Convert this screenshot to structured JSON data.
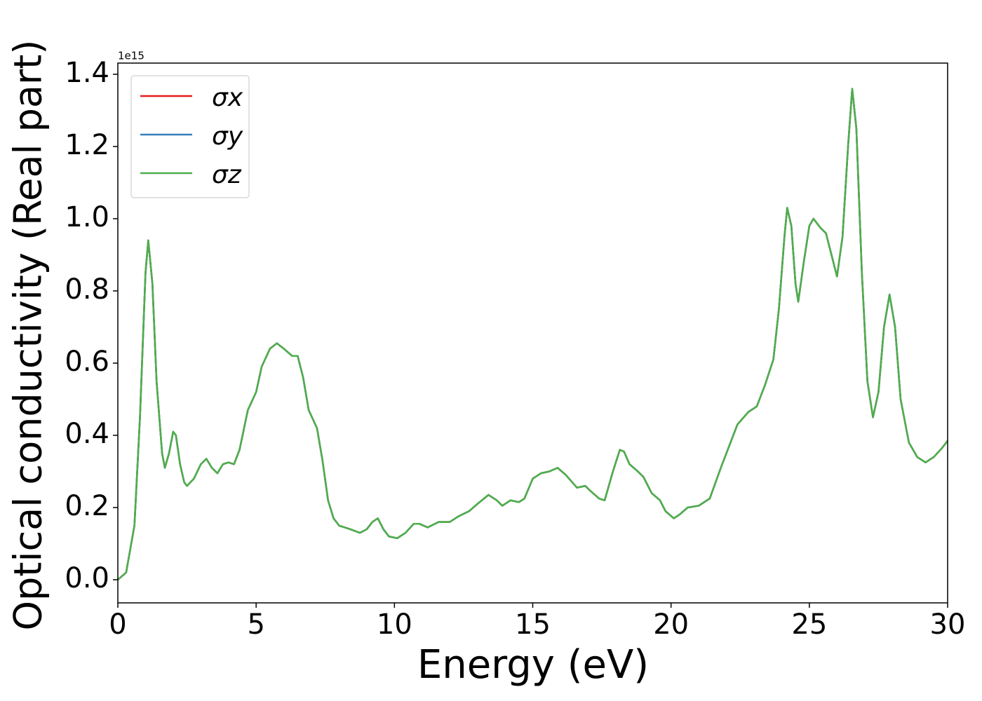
{
  "chart_data": {
    "type": "line",
    "xlabel": "Energy (eV)",
    "ylabel": "Optical conductivity (Real part)",
    "y_offset_label": "1e15",
    "xlim": [
      0,
      30
    ],
    "xticks": [
      0,
      5,
      10,
      15,
      20,
      25,
      30
    ],
    "ylim": [
      -0.064,
      1.431
    ],
    "yticks": [
      {
        "value": 0,
        "label": "0.0"
      },
      {
        "value": 0.2,
        "label": "0.2"
      },
      {
        "value": 0.4,
        "label": "0.4"
      },
      {
        "value": 0.6,
        "label": "0.6"
      },
      {
        "value": 0.8,
        "label": "0.8"
      },
      {
        "value": 1.0,
        "label": "1.0"
      },
      {
        "value": 1.2,
        "label": "1.2"
      },
      {
        "value": 1.4,
        "label": "1.4"
      }
    ],
    "legend": "upper left",
    "x": [
      0,
      0.3,
      0.6,
      0.8,
      1.0,
      1.1,
      1.25,
      1.4,
      1.6,
      1.7,
      1.85,
      2.0,
      2.1,
      2.25,
      2.4,
      2.5,
      2.75,
      3.0,
      3.2,
      3.4,
      3.6,
      3.8,
      4.0,
      4.2,
      4.4,
      4.7,
      5.0,
      5.2,
      5.5,
      5.75,
      6.0,
      6.3,
      6.5,
      6.7,
      6.9,
      7.2,
      7.4,
      7.6,
      7.8,
      8.0,
      8.4,
      8.75,
      9.0,
      9.2,
      9.4,
      9.6,
      9.8,
      10.1,
      10.4,
      10.7,
      10.9,
      11.2,
      11.6,
      12.0,
      12.3,
      12.7,
      13.0,
      13.4,
      13.7,
      13.9,
      14.2,
      14.5,
      14.7,
      15.0,
      15.3,
      15.6,
      15.9,
      16.2,
      16.6,
      16.9,
      17.1,
      17.4,
      17.6,
      17.9,
      18.15,
      18.3,
      18.5,
      18.8,
      19.0,
      19.3,
      19.6,
      19.8,
      20.1,
      20.3,
      20.6,
      21.0,
      21.4,
      21.8,
      22.1,
      22.4,
      22.8,
      23.1,
      23.4,
      23.7,
      23.9,
      24.1,
      24.2,
      24.35,
      24.5,
      24.6,
      24.8,
      25.0,
      25.15,
      25.4,
      25.6,
      25.9,
      26.0,
      26.2,
      26.4,
      26.55,
      26.7,
      26.9,
      27.1,
      27.3,
      27.5,
      27.7,
      27.9,
      28.1,
      28.3,
      28.6,
      28.9,
      29.2,
      29.5,
      29.8,
      30
    ],
    "series": [
      {
        "name": "σx",
        "color": "#e41a1c",
        "values": [
          0,
          0.02,
          0.15,
          0.45,
          0.85,
          0.94,
          0.82,
          0.55,
          0.35,
          0.31,
          0.35,
          0.41,
          0.4,
          0.32,
          0.27,
          0.26,
          0.28,
          0.32,
          0.335,
          0.31,
          0.295,
          0.32,
          0.325,
          0.32,
          0.36,
          0.47,
          0.52,
          0.59,
          0.64,
          0.655,
          0.64,
          0.62,
          0.62,
          0.56,
          0.47,
          0.42,
          0.33,
          0.22,
          0.17,
          0.15,
          0.14,
          0.13,
          0.14,
          0.16,
          0.17,
          0.14,
          0.12,
          0.115,
          0.13,
          0.155,
          0.155,
          0.145,
          0.16,
          0.16,
          0.175,
          0.19,
          0.21,
          0.235,
          0.22,
          0.205,
          0.22,
          0.215,
          0.225,
          0.28,
          0.295,
          0.3,
          0.31,
          0.29,
          0.255,
          0.26,
          0.245,
          0.225,
          0.22,
          0.3,
          0.36,
          0.355,
          0.32,
          0.3,
          0.285,
          0.24,
          0.22,
          0.19,
          0.17,
          0.18,
          0.2,
          0.205,
          0.225,
          0.31,
          0.37,
          0.43,
          0.465,
          0.48,
          0.54,
          0.61,
          0.75,
          0.95,
          1.03,
          0.98,
          0.82,
          0.77,
          0.88,
          0.98,
          1.0,
          0.975,
          0.96,
          0.87,
          0.84,
          0.95,
          1.2,
          1.36,
          1.25,
          0.85,
          0.55,
          0.45,
          0.52,
          0.7,
          0.79,
          0.7,
          0.5,
          0.38,
          0.34,
          0.325,
          0.34,
          0.365,
          0.385
        ]
      },
      {
        "name": "σy",
        "color": "#377eb8",
        "values": [
          0,
          0.02,
          0.15,
          0.45,
          0.85,
          0.94,
          0.82,
          0.55,
          0.35,
          0.31,
          0.35,
          0.41,
          0.4,
          0.32,
          0.27,
          0.26,
          0.28,
          0.32,
          0.335,
          0.31,
          0.295,
          0.32,
          0.325,
          0.32,
          0.36,
          0.47,
          0.52,
          0.59,
          0.64,
          0.655,
          0.64,
          0.62,
          0.62,
          0.56,
          0.47,
          0.42,
          0.33,
          0.22,
          0.17,
          0.15,
          0.14,
          0.13,
          0.14,
          0.16,
          0.17,
          0.14,
          0.12,
          0.115,
          0.13,
          0.155,
          0.155,
          0.145,
          0.16,
          0.16,
          0.175,
          0.19,
          0.21,
          0.235,
          0.22,
          0.205,
          0.22,
          0.215,
          0.225,
          0.28,
          0.295,
          0.3,
          0.31,
          0.29,
          0.255,
          0.26,
          0.245,
          0.225,
          0.22,
          0.3,
          0.36,
          0.355,
          0.32,
          0.3,
          0.285,
          0.24,
          0.22,
          0.19,
          0.17,
          0.18,
          0.2,
          0.205,
          0.225,
          0.31,
          0.37,
          0.43,
          0.465,
          0.48,
          0.54,
          0.61,
          0.75,
          0.95,
          1.03,
          0.98,
          0.82,
          0.77,
          0.88,
          0.98,
          1.0,
          0.975,
          0.96,
          0.87,
          0.84,
          0.95,
          1.2,
          1.36,
          1.25,
          0.85,
          0.55,
          0.45,
          0.52,
          0.7,
          0.79,
          0.7,
          0.5,
          0.38,
          0.34,
          0.325,
          0.34,
          0.365,
          0.385
        ]
      },
      {
        "name": "σz",
        "color": "#4daf4a",
        "values": [
          0,
          0.02,
          0.15,
          0.45,
          0.85,
          0.94,
          0.82,
          0.55,
          0.35,
          0.31,
          0.35,
          0.41,
          0.4,
          0.32,
          0.27,
          0.26,
          0.28,
          0.32,
          0.335,
          0.31,
          0.295,
          0.32,
          0.325,
          0.32,
          0.36,
          0.47,
          0.52,
          0.59,
          0.64,
          0.655,
          0.64,
          0.62,
          0.62,
          0.56,
          0.47,
          0.42,
          0.33,
          0.22,
          0.17,
          0.15,
          0.14,
          0.13,
          0.14,
          0.16,
          0.17,
          0.14,
          0.12,
          0.115,
          0.13,
          0.155,
          0.155,
          0.145,
          0.16,
          0.16,
          0.175,
          0.19,
          0.21,
          0.235,
          0.22,
          0.205,
          0.22,
          0.215,
          0.225,
          0.28,
          0.295,
          0.3,
          0.31,
          0.29,
          0.255,
          0.26,
          0.245,
          0.225,
          0.22,
          0.3,
          0.36,
          0.355,
          0.32,
          0.3,
          0.285,
          0.24,
          0.22,
          0.19,
          0.17,
          0.18,
          0.2,
          0.205,
          0.225,
          0.31,
          0.37,
          0.43,
          0.465,
          0.48,
          0.54,
          0.61,
          0.75,
          0.95,
          1.03,
          0.98,
          0.82,
          0.77,
          0.88,
          0.98,
          1.0,
          0.975,
          0.96,
          0.87,
          0.84,
          0.95,
          1.2,
          1.36,
          1.25,
          0.85,
          0.55,
          0.45,
          0.52,
          0.7,
          0.79,
          0.7,
          0.5,
          0.38,
          0.34,
          0.325,
          0.34,
          0.365,
          0.385
        ]
      }
    ]
  }
}
